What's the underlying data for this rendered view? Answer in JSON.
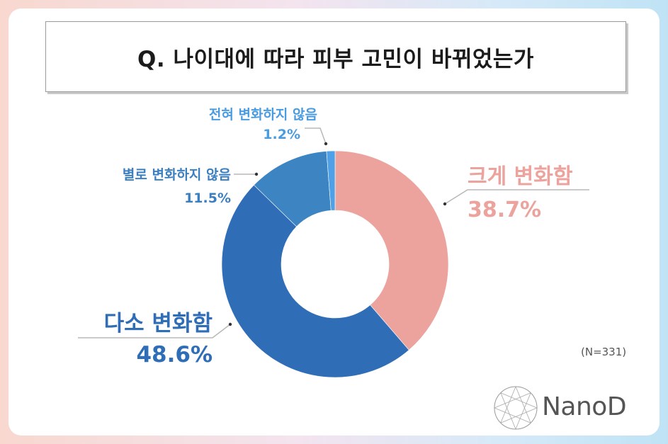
{
  "title": "Q. 나이대에 따라 피부 고민이 바뀌었는가",
  "note": "(N=331)",
  "logo_text": "NanoD",
  "chart_data": {
    "type": "pie",
    "donut": true,
    "title": "Q. 나이대에 따라 피부 고민이 바뀌었는가",
    "slices": [
      {
        "label": "크게 변화함",
        "value": 38.7,
        "value_label": "38.7%",
        "color": "#eda39d"
      },
      {
        "label": "다소 변화함",
        "value": 48.6,
        "value_label": "48.6%",
        "color": "#2f6eb7"
      },
      {
        "label": "별로 변화하지 않음",
        "value": 11.5,
        "value_label": "11.5%",
        "color": "#3d84c2"
      },
      {
        "label": "전혀 변화하지 않음",
        "value": 1.2,
        "value_label": "1.2%",
        "color": "#4fa0e6"
      }
    ],
    "label_colors": {
      "크게 변화함": "#eda39d",
      "다소 변화함": "#2f6eb7",
      "별로 변화하지 않음": "#3c7fc0",
      "전혀 변화하지 않음": "#4a9be0"
    }
  }
}
